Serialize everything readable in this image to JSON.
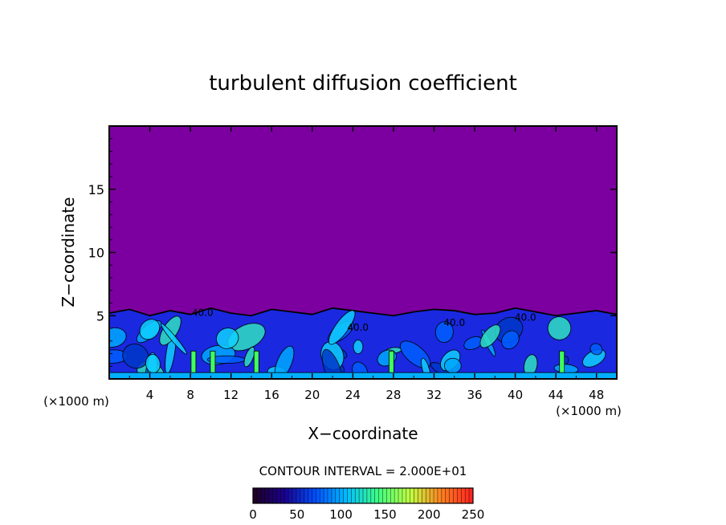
{
  "chart_data": {
    "type": "heatmap",
    "title": "turbulent diffusion coefficient",
    "xlabel": "X−coordinate",
    "ylabel": "Z−coordinate",
    "x_unit": "(×1000 m)",
    "y_unit": "(×1000 m)",
    "xlim": [
      0,
      50
    ],
    "ylim": [
      0,
      20
    ],
    "x_ticks": [
      4,
      8,
      12,
      16,
      20,
      24,
      28,
      32,
      36,
      40,
      44,
      48
    ],
    "y_ticks": [
      5,
      10,
      15
    ],
    "contour_interval_text": "CONTOUR INTERVAL = 2.000E+01",
    "contour_interval": 20,
    "contour_labels": [
      "40.0",
      "40.0",
      "40.0",
      "40.0"
    ],
    "colorbar": {
      "min": 0,
      "max": 250,
      "ticks": [
        0,
        50,
        100,
        150,
        200,
        250
      ],
      "colors": [
        "#200020",
        "#1a0090",
        "#0050ff",
        "#00c0ff",
        "#40ff80",
        "#c0ff40",
        "#ff8020",
        "#ff2020"
      ]
    },
    "background_value_color": "#7c00a0",
    "turbulent_layer_top": [
      5.2,
      5.5,
      5.0,
      5.4,
      5.1,
      5.6,
      5.2,
      5.0,
      5.5,
      5.3,
      5.1,
      5.6,
      5.4,
      5.2,
      5.0,
      5.3,
      5.5,
      5.4,
      5.1,
      5.2,
      5.6,
      5.3,
      5.0,
      5.2,
      5.4,
      5.1
    ]
  }
}
